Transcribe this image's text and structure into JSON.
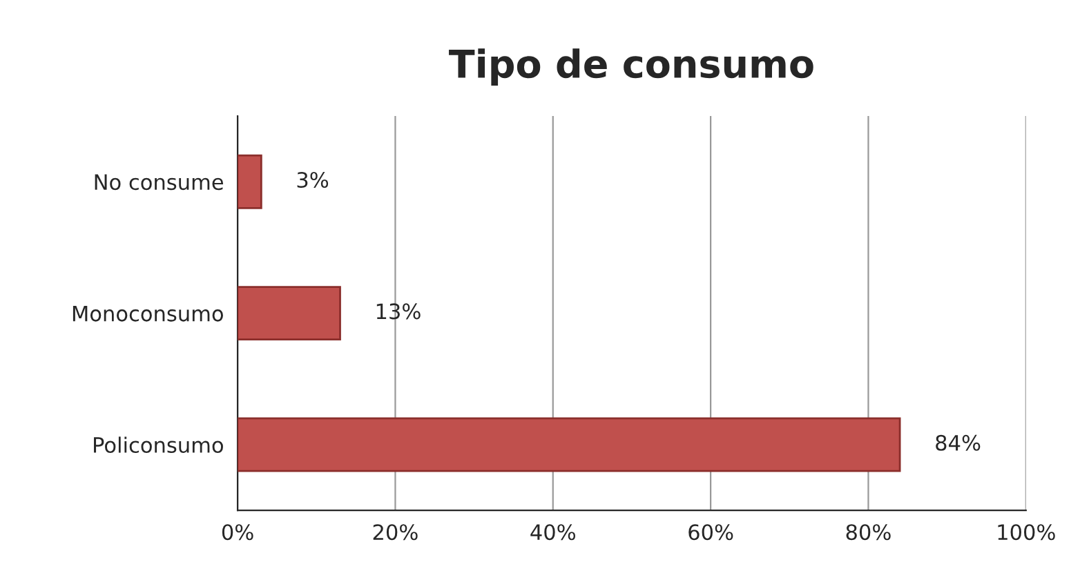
{
  "chart_data": {
    "type": "bar",
    "title": "Tipo de consumo",
    "orientation": "horizontal",
    "categories": [
      "No consume",
      "Monoconsumo",
      "Policonsumo"
    ],
    "values": [
      3,
      13,
      84
    ],
    "color": "#c0504d",
    "value_labels": [
      "3%",
      "13%",
      "84%"
    ],
    "xlim": [
      0,
      100
    ],
    "xticks": [
      {
        "value": 0,
        "label": "0%"
      },
      {
        "value": 20,
        "label": "20%"
      },
      {
        "value": 40,
        "label": "40%"
      },
      {
        "value": 60,
        "label": "60%"
      },
      {
        "value": 80,
        "label": "80%"
      },
      {
        "value": 100,
        "label": "100%"
      }
    ],
    "grid": "x",
    "legend": false
  }
}
